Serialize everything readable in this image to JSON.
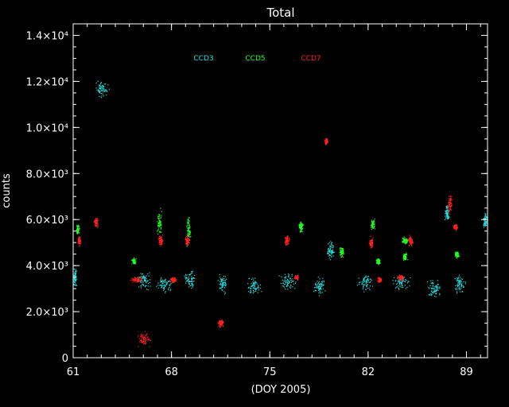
{
  "chart_data": {
    "type": "scatter",
    "title": "Total",
    "xlabel": "(DOY 2005)",
    "ylabel": "counts",
    "xlim": [
      61,
      90.5
    ],
    "ylim": [
      0,
      14500
    ],
    "x_ticks": [
      61,
      68,
      75,
      82,
      89
    ],
    "y_ticks": [
      {
        "value": 0,
        "label": "0"
      },
      {
        "value": 2000,
        "label": "2.0×10³"
      },
      {
        "value": 4000,
        "label": "4.0×10³"
      },
      {
        "value": 6000,
        "label": "6.0×10³"
      },
      {
        "value": 8000,
        "label": "8.0×10³"
      },
      {
        "value": 10000,
        "label": "1.0×10⁴"
      },
      {
        "value": 12000,
        "label": "1.2×10⁴"
      },
      {
        "value": 14000,
        "label": "1.4×10⁴"
      }
    ],
    "legend_position": "top",
    "background": "#000000",
    "series": [
      {
        "name": "CCD3",
        "color": "#22e0e0",
        "clusters": [
          {
            "x": 61.1,
            "y": 3500,
            "dx": 0.2,
            "dy": 500
          },
          {
            "x": 63.0,
            "y": 11700,
            "dx": 0.6,
            "dy": 400
          },
          {
            "x": 66.0,
            "y": 3400,
            "dx": 0.6,
            "dy": 500
          },
          {
            "x": 67.5,
            "y": 3200,
            "dx": 0.7,
            "dy": 500
          },
          {
            "x": 69.3,
            "y": 3400,
            "dx": 0.5,
            "dy": 500
          },
          {
            "x": 71.6,
            "y": 3200,
            "dx": 0.4,
            "dy": 500
          },
          {
            "x": 73.8,
            "y": 3100,
            "dx": 0.7,
            "dy": 500
          },
          {
            "x": 76.3,
            "y": 3300,
            "dx": 0.8,
            "dy": 500
          },
          {
            "x": 78.5,
            "y": 3100,
            "dx": 0.5,
            "dy": 500
          },
          {
            "x": 79.3,
            "y": 4700,
            "dx": 0.3,
            "dy": 500
          },
          {
            "x": 81.8,
            "y": 3300,
            "dx": 0.7,
            "dy": 500
          },
          {
            "x": 84.3,
            "y": 3300,
            "dx": 0.8,
            "dy": 500
          },
          {
            "x": 86.7,
            "y": 3000,
            "dx": 0.6,
            "dy": 500
          },
          {
            "x": 88.5,
            "y": 3200,
            "dx": 0.5,
            "dy": 500
          },
          {
            "x": 87.6,
            "y": 6300,
            "dx": 0.2,
            "dy": 400
          },
          {
            "x": 90.3,
            "y": 6000,
            "dx": 0.2,
            "dy": 400
          }
        ]
      },
      {
        "name": "CCD5",
        "color": "#22ff22",
        "clusters": [
          {
            "x": 61.3,
            "y": 5600,
            "dx": 0.15,
            "dy": 300
          },
          {
            "x": 65.3,
            "y": 4200,
            "dx": 0.2,
            "dy": 200
          },
          {
            "x": 67.1,
            "y": 5900,
            "dx": 0.2,
            "dy": 700
          },
          {
            "x": 69.2,
            "y": 5500,
            "dx": 0.2,
            "dy": 800
          },
          {
            "x": 77.2,
            "y": 5700,
            "dx": 0.2,
            "dy": 300
          },
          {
            "x": 80.1,
            "y": 4600,
            "dx": 0.2,
            "dy": 300
          },
          {
            "x": 82.3,
            "y": 5800,
            "dx": 0.2,
            "dy": 300
          },
          {
            "x": 82.7,
            "y": 4200,
            "dx": 0.2,
            "dy": 200
          },
          {
            "x": 84.6,
            "y": 5100,
            "dx": 0.3,
            "dy": 200
          },
          {
            "x": 84.6,
            "y": 4400,
            "dx": 0.2,
            "dy": 200
          },
          {
            "x": 88.3,
            "y": 4500,
            "dx": 0.2,
            "dy": 200
          }
        ]
      },
      {
        "name": "CCD7",
        "color": "#ff2020",
        "clusters": [
          {
            "x": 61.4,
            "y": 5100,
            "dx": 0.15,
            "dy": 300
          },
          {
            "x": 62.6,
            "y": 5900,
            "dx": 0.2,
            "dy": 300
          },
          {
            "x": 65.5,
            "y": 3400,
            "dx": 0.5,
            "dy": 150
          },
          {
            "x": 67.2,
            "y": 5100,
            "dx": 0.2,
            "dy": 300
          },
          {
            "x": 68.1,
            "y": 3400,
            "dx": 0.3,
            "dy": 150
          },
          {
            "x": 69.1,
            "y": 5100,
            "dx": 0.2,
            "dy": 300
          },
          {
            "x": 76.2,
            "y": 5100,
            "dx": 0.2,
            "dy": 300
          },
          {
            "x": 76.9,
            "y": 3500,
            "dx": 0.2,
            "dy": 150
          },
          {
            "x": 79.0,
            "y": 9400,
            "dx": 0.15,
            "dy": 200
          },
          {
            "x": 82.2,
            "y": 5000,
            "dx": 0.2,
            "dy": 300
          },
          {
            "x": 82.8,
            "y": 3400,
            "dx": 0.2,
            "dy": 150
          },
          {
            "x": 84.3,
            "y": 3500,
            "dx": 0.3,
            "dy": 150
          },
          {
            "x": 85.0,
            "y": 5100,
            "dx": 0.2,
            "dy": 300
          },
          {
            "x": 87.8,
            "y": 6700,
            "dx": 0.2,
            "dy": 500
          },
          {
            "x": 88.2,
            "y": 5700,
            "dx": 0.2,
            "dy": 200
          },
          {
            "x": 66.0,
            "y": 800,
            "dx": 0.6,
            "dy": 400
          },
          {
            "x": 71.5,
            "y": 1500,
            "dx": 0.3,
            "dy": 200
          }
        ]
      }
    ]
  }
}
